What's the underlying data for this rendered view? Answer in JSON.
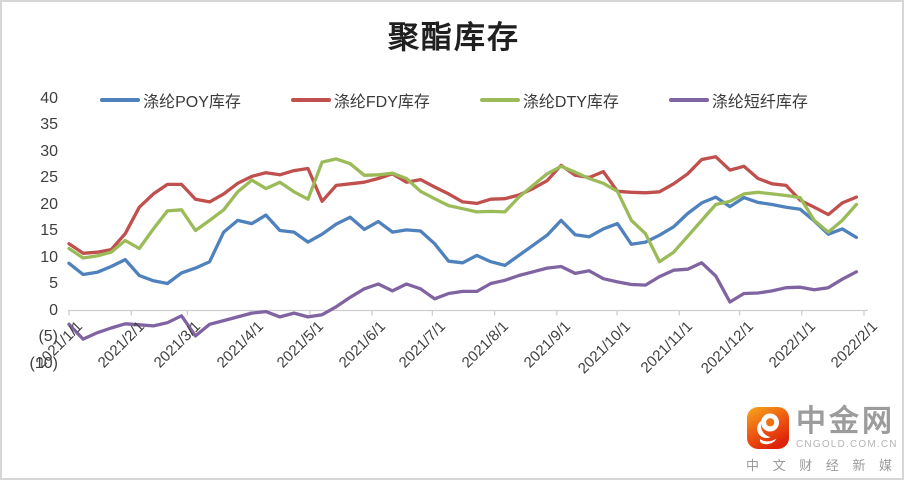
{
  "chart_data": {
    "type": "line",
    "title": "聚酯库存",
    "x_unit": "weekly",
    "grid": false,
    "legend_position": "top",
    "ylim": [
      -10,
      40
    ],
    "ytick_labels": [
      "40",
      "35",
      "30",
      "25",
      "20",
      "15",
      "10",
      "5",
      "0",
      "(5)",
      "(10)"
    ],
    "ytick_values": [
      40,
      35,
      30,
      25,
      20,
      15,
      10,
      5,
      0,
      -5,
      -10
    ],
    "xticks": [
      {
        "label": "2021/1/1",
        "day": 0
      },
      {
        "label": "2021/2/1",
        "day": 31
      },
      {
        "label": "2021/3/1",
        "day": 59
      },
      {
        "label": "2021/4/1",
        "day": 90
      },
      {
        "label": "2021/5/1",
        "day": 120
      },
      {
        "label": "2021/6/1",
        "day": 151
      },
      {
        "label": "2021/7/1",
        "day": 181
      },
      {
        "label": "2021/8/1",
        "day": 212
      },
      {
        "label": "2021/9/1",
        "day": 243
      },
      {
        "label": "2021/10/1",
        "day": 273
      },
      {
        "label": "2021/11/1",
        "day": 304
      },
      {
        "label": "2021/12/1",
        "day": 334
      },
      {
        "label": "2022/1/1",
        "day": 365
      },
      {
        "label": "2022/2/1",
        "day": 396
      }
    ],
    "x_dates": [
      "2021/1/1",
      "2021/1/8",
      "2021/1/15",
      "2021/1/22",
      "2021/1/29",
      "2021/2/5",
      "2021/2/12",
      "2021/2/19",
      "2021/2/26",
      "2021/3/5",
      "2021/3/12",
      "2021/3/19",
      "2021/3/26",
      "2021/4/2",
      "2021/4/9",
      "2021/4/16",
      "2021/4/23",
      "2021/4/30",
      "2021/5/7",
      "2021/5/14",
      "2021/5/21",
      "2021/5/28",
      "2021/6/4",
      "2021/6/11",
      "2021/6/18",
      "2021/6/25",
      "2021/7/2",
      "2021/7/9",
      "2021/7/16",
      "2021/7/23",
      "2021/7/30",
      "2021/8/6",
      "2021/8/13",
      "2021/8/20",
      "2021/8/27",
      "2021/9/3",
      "2021/9/10",
      "2021/9/17",
      "2021/9/24",
      "2021/10/1",
      "2021/10/8",
      "2021/10/15",
      "2021/10/22",
      "2021/10/29",
      "2021/11/5",
      "2021/11/12",
      "2021/11/19",
      "2021/11/26",
      "2021/12/3",
      "2021/12/10",
      "2021/12/17",
      "2021/12/24",
      "2021/12/31",
      "2022/1/7",
      "2022/1/14",
      "2022/1/21",
      "2022/1/28"
    ],
    "series": [
      {
        "name": "涤纶POY库存",
        "color": "#4F81BD",
        "values": [
          8.9,
          6.8,
          7.2,
          8.3,
          9.6,
          6.6,
          5.6,
          5.1,
          7.1,
          8.0,
          9.2,
          14.8,
          17.0,
          16.4,
          18.0,
          15.1,
          14.8,
          12.9,
          14.4,
          16.3,
          17.6,
          15.3,
          16.8,
          14.8,
          15.2,
          15.0,
          12.6,
          9.3,
          9.0,
          10.4,
          9.2,
          8.5,
          10.4,
          12.3,
          14.2,
          17.0,
          14.3,
          13.9,
          15.4,
          16.4,
          12.5,
          12.9,
          14.2,
          15.8,
          18.3,
          20.3,
          21.4,
          19.6,
          21.3,
          20.4,
          20.0,
          19.5,
          19.1,
          16.9,
          14.4,
          15.4,
          13.8
        ]
      },
      {
        "name": "涤纶FDY库存",
        "color": "#C0504D",
        "values": [
          12.6,
          10.8,
          11.0,
          11.5,
          14.5,
          19.5,
          22.0,
          23.8,
          23.8,
          21.0,
          20.5,
          22.0,
          24.0,
          25.3,
          26.0,
          25.6,
          26.4,
          26.8,
          20.6,
          23.6,
          23.9,
          24.2,
          24.9,
          25.8,
          24.2,
          24.7,
          23.3,
          22.0,
          20.5,
          20.2,
          21.0,
          21.1,
          21.8,
          23.0,
          24.5,
          27.4,
          25.5,
          25.1,
          26.2,
          22.5,
          22.3,
          22.2,
          22.4,
          23.9,
          25.8,
          28.5,
          29.0,
          26.5,
          27.2,
          24.9,
          23.9,
          23.6,
          20.8,
          19.5,
          18.1,
          20.3,
          21.4
        ]
      },
      {
        "name": "涤纶DTY库存",
        "color": "#9BBB59",
        "values": [
          11.7,
          9.9,
          10.3,
          11.0,
          13.2,
          11.7,
          15.4,
          18.8,
          19.0,
          15.1,
          17.0,
          19.0,
          22.4,
          24.6,
          23.0,
          24.2,
          22.4,
          21.0,
          28.0,
          28.6,
          27.7,
          25.5,
          25.6,
          25.9,
          24.9,
          22.5,
          21.1,
          19.8,
          19.2,
          18.6,
          18.7,
          18.6,
          21.4,
          23.6,
          25.8,
          27.2,
          26.1,
          24.9,
          24.0,
          22.5,
          17.0,
          14.5,
          9.2,
          11.0,
          14.0,
          17.0,
          20.0,
          20.6,
          22.0,
          22.3,
          22.0,
          21.7,
          21.3,
          17.0,
          14.8,
          17.0,
          20.0
        ]
      },
      {
        "name": "涤纶短纤库存",
        "color": "#8064A2",
        "values": [
          -2.6,
          -5.4,
          -4.2,
          -3.3,
          -2.5,
          -2.7,
          -2.9,
          -2.3,
          -1.0,
          -4.8,
          -2.6,
          -1.9,
          -1.2,
          -0.5,
          -0.2,
          -1.2,
          -0.5,
          -1.2,
          -0.8,
          0.7,
          2.5,
          4.1,
          5.0,
          3.7,
          5.0,
          4.1,
          2.2,
          3.2,
          3.6,
          3.6,
          5.1,
          5.7,
          6.6,
          7.3,
          8.0,
          8.3,
          7.0,
          7.5,
          6.0,
          5.4,
          4.9,
          4.8,
          6.4,
          7.6,
          7.8,
          9.0,
          6.5,
          1.6,
          3.2,
          3.3,
          3.7,
          4.3,
          4.4,
          3.9,
          4.3,
          5.9,
          7.3
        ]
      }
    ]
  },
  "watermark": {
    "brand": "中金网",
    "site": "CNGOLD.COM.CN",
    "tagline": "中 文 财 经 新 媒 体",
    "icon": "cngold-swirl-icon",
    "icon_color_top": "#F7A91C",
    "icon_color_bottom": "#DD2408"
  },
  "axis_color": "#CFCECE"
}
